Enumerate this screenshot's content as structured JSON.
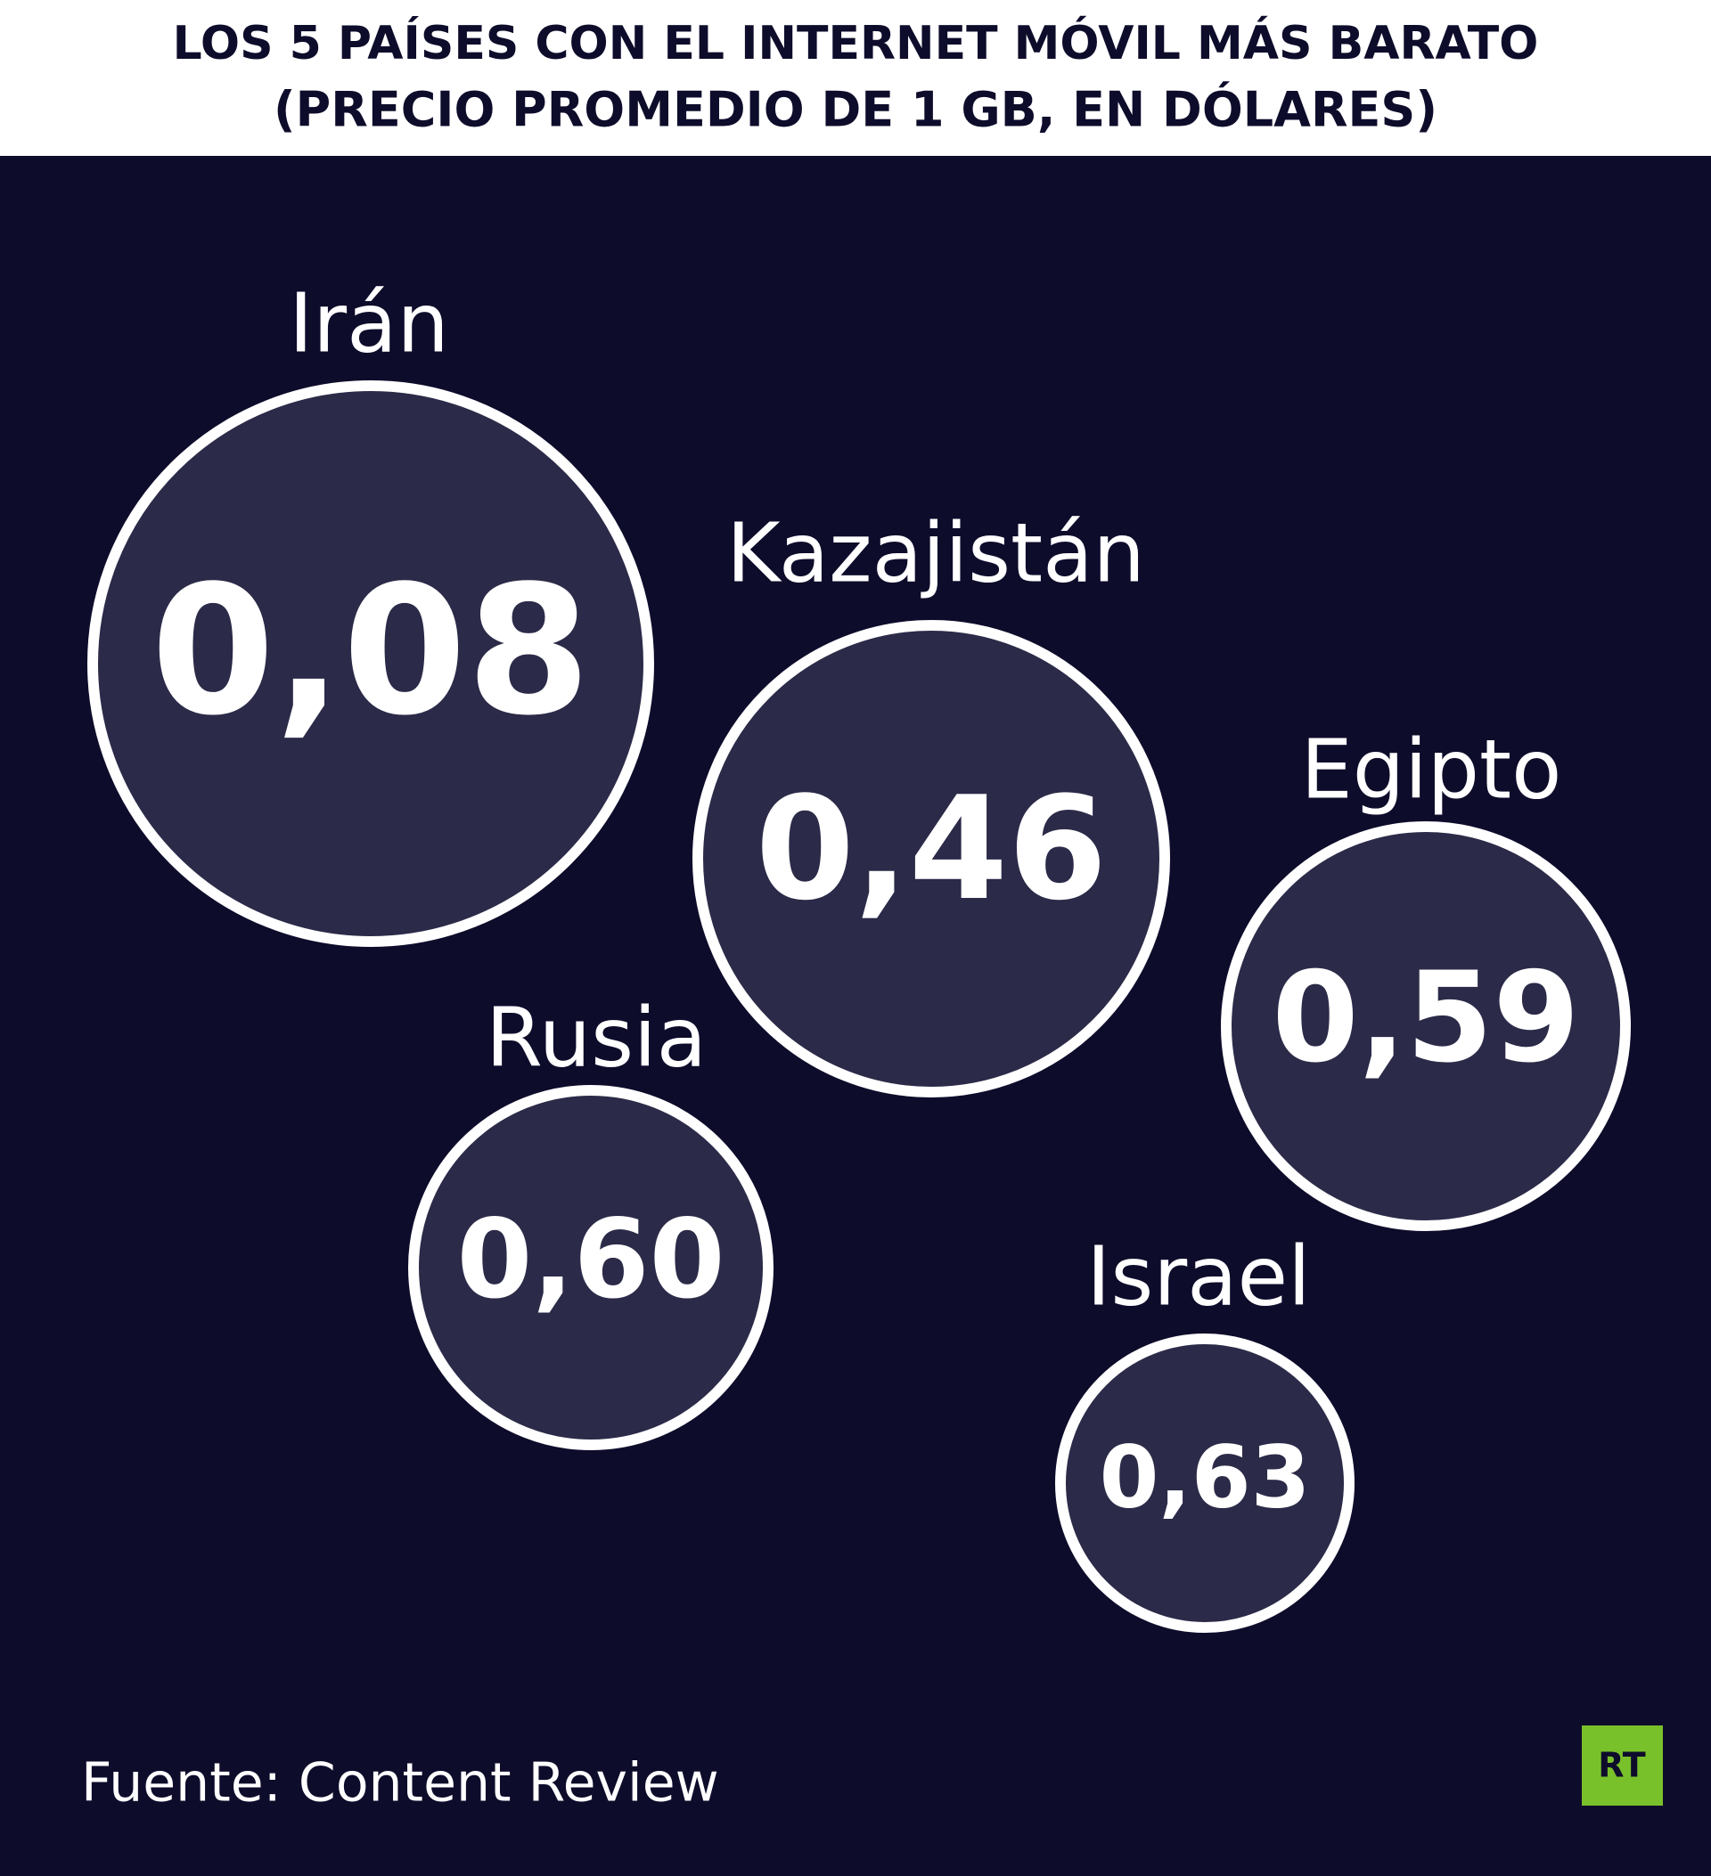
{
  "chart_data": {
    "type": "bubble",
    "title": "LOS 5 PAÍSES CON EL INTERNET MÓVIL MÁS BARATO",
    "subtitle": "(PRECIO PROMEDIO DE 1 GB, EN DÓLARES)",
    "categories": [
      "Irán",
      "Kazajistán",
      "Egipto",
      "Rusia",
      "Israel"
    ],
    "values": [
      0.08,
      0.46,
      0.59,
      0.6,
      0.63
    ],
    "value_labels": [
      "0,08",
      "0,46",
      "0,59",
      "0,60",
      "0,63"
    ],
    "source": "Fuente: Content Review",
    "logo": "RT"
  }
}
